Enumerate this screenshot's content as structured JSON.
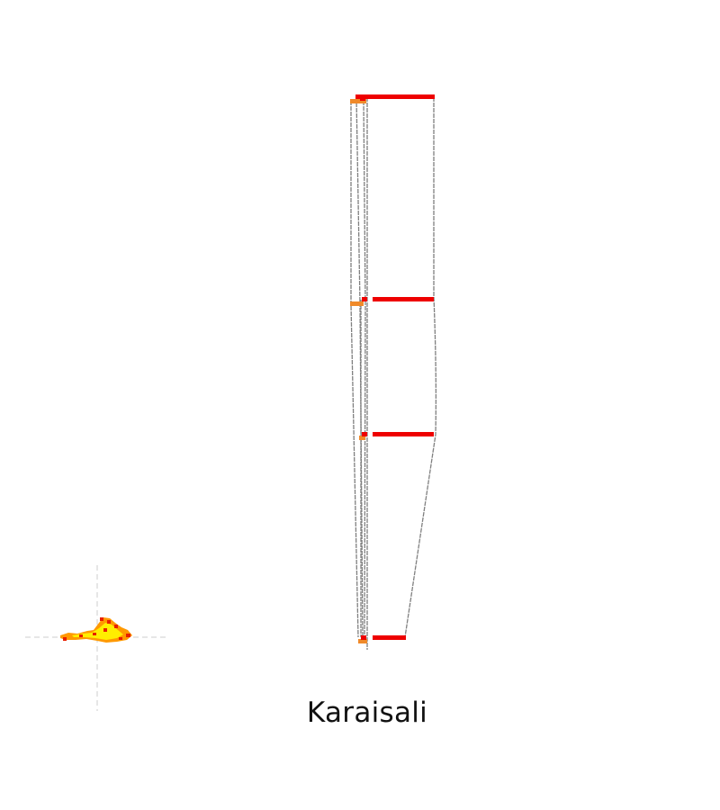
{
  "place_name": "Karaisali",
  "colors": {
    "bar": "#ee0000",
    "bar_secondary": "#f08a2a",
    "outline": "#808080",
    "crosshair": "#cccccc",
    "heat_low": "#ffee00",
    "heat_mid": "#ff9900",
    "heat_high": "#e81f00"
  },
  "icons": {
    "locator": "heatmap-locator-icon"
  }
}
